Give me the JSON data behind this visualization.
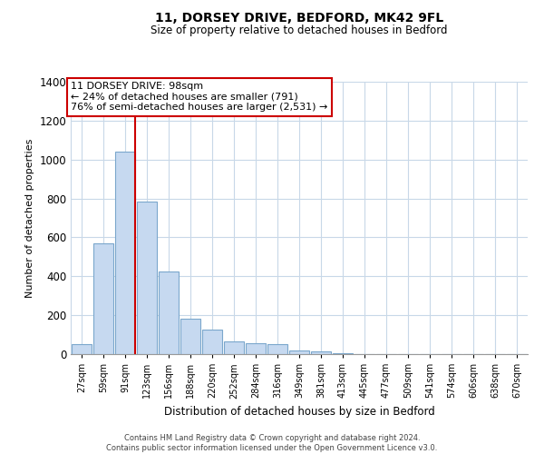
{
  "title_line1": "11, DORSEY DRIVE, BEDFORD, MK42 9FL",
  "title_line2": "Size of property relative to detached houses in Bedford",
  "xlabel": "Distribution of detached houses by size in Bedford",
  "ylabel": "Number of detached properties",
  "bar_color": "#c6d9f0",
  "bar_edge_color": "#7ba7cc",
  "categories": [
    "27sqm",
    "59sqm",
    "91sqm",
    "123sqm",
    "156sqm",
    "188sqm",
    "220sqm",
    "252sqm",
    "284sqm",
    "316sqm",
    "349sqm",
    "381sqm",
    "413sqm",
    "445sqm",
    "477sqm",
    "509sqm",
    "541sqm",
    "574sqm",
    "606sqm",
    "638sqm",
    "670sqm"
  ],
  "values": [
    50,
    570,
    1040,
    785,
    425,
    180,
    125,
    65,
    55,
    50,
    20,
    15,
    5,
    0,
    0,
    0,
    0,
    0,
    0,
    0,
    0
  ],
  "ylim": [
    0,
    1400
  ],
  "yticks": [
    0,
    200,
    400,
    600,
    800,
    1000,
    1200,
    1400
  ],
  "marker_index": 2,
  "marker_color": "#cc0000",
  "annotation_title": "11 DORSEY DRIVE: 98sqm",
  "annotation_line2": "← 24% of detached houses are smaller (791)",
  "annotation_line3": "76% of semi-detached houses are larger (2,531) →",
  "annotation_box_color": "#ffffff",
  "annotation_box_edge": "#cc0000",
  "footer_line1": "Contains HM Land Registry data © Crown copyright and database right 2024.",
  "footer_line2": "Contains public sector information licensed under the Open Government Licence v3.0.",
  "background_color": "#ffffff",
  "grid_color": "#c8d8e8"
}
